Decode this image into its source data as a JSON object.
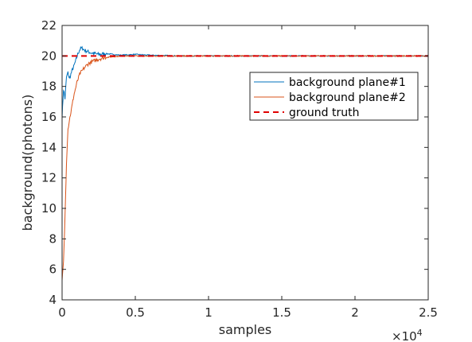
{
  "chart_data": {
    "type": "line",
    "title": "",
    "xlabel": "samples",
    "ylabel": "background(photons)",
    "x_multiplier_label": "×10",
    "x_multiplier_exponent": "4",
    "xlim": [
      0,
      25000
    ],
    "ylim": [
      4,
      22
    ],
    "xticks": [
      0,
      5000,
      10000,
      15000,
      20000,
      25000
    ],
    "xtick_labels": [
      "0",
      "0.5",
      "1",
      "1.5",
      "2",
      "2.5"
    ],
    "yticks": [
      4,
      6,
      8,
      10,
      12,
      14,
      16,
      18,
      20,
      22
    ],
    "ytick_labels": [
      "4",
      "6",
      "8",
      "10",
      "12",
      "14",
      "16",
      "18",
      "20",
      "22"
    ],
    "grid": false,
    "legend_position": "top-right",
    "series": [
      {
        "name": "background plane#1",
        "color": "#0072BD",
        "style": "solid",
        "x": [
          0,
          100,
          200,
          300,
          400,
          500,
          600,
          700,
          800,
          900,
          1000,
          1100,
          1200,
          1300,
          1400,
          1500,
          1700,
          2000,
          2500,
          3000,
          3500,
          4000,
          5000,
          6000,
          8000,
          10000,
          12000,
          15000,
          18000,
          20000,
          22000,
          25000
        ],
        "y": [
          16.0,
          17.8,
          17.2,
          18.6,
          18.9,
          18.5,
          18.8,
          19.1,
          19.3,
          19.6,
          19.9,
          20.2,
          20.4,
          20.5,
          20.5,
          20.4,
          20.3,
          20.2,
          20.1,
          20.15,
          20.1,
          20.05,
          20.1,
          20.05,
          20.0,
          20.0,
          20.0,
          20.0,
          20.0,
          20.0,
          20.0,
          20.0
        ]
      },
      {
        "name": "background plane#2",
        "color": "#D95319",
        "style": "solid",
        "x": [
          0,
          100,
          200,
          300,
          400,
          500,
          600,
          800,
          1000,
          1200,
          1500,
          1800,
          2000,
          2500,
          3000,
          3500,
          4000,
          5000,
          6000,
          8000,
          10000,
          12000,
          15000,
          18000,
          20000,
          22000,
          25000
        ],
        "y": [
          5.2,
          6.5,
          9.5,
          13.0,
          15.2,
          15.8,
          16.3,
          17.4,
          18.2,
          18.8,
          19.2,
          19.5,
          19.6,
          19.8,
          19.9,
          19.95,
          20.0,
          20.0,
          20.0,
          20.0,
          20.0,
          20.0,
          20.0,
          20.0,
          20.0,
          20.0,
          20.0
        ]
      },
      {
        "name": "ground truth",
        "color": "#E00000",
        "style": "dashed",
        "x": [
          0,
          25000
        ],
        "y": [
          20,
          20
        ]
      }
    ]
  }
}
